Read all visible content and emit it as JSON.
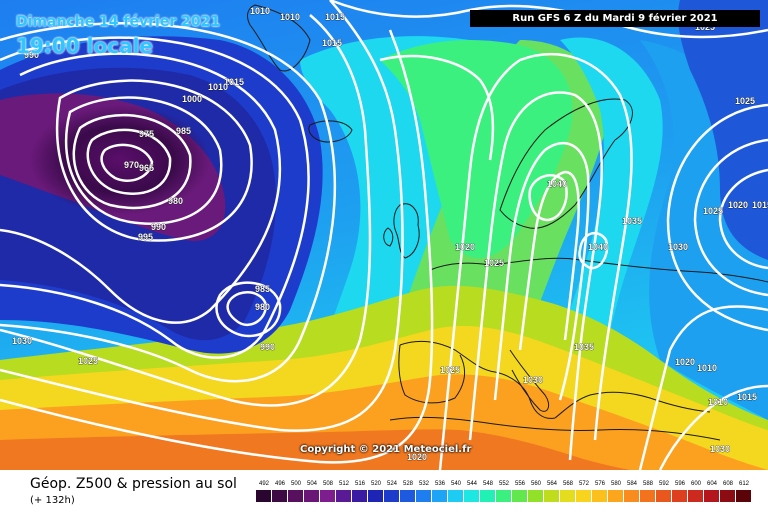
{
  "header": {
    "date_line": "Dimanche 14 février 2021",
    "time_line": "19:00 locale",
    "run_banner": "Run GFS 6 Z du Mardi 9 février 2021"
  },
  "copyright": "Copyright © 2021 Meteociel.fr",
  "footer": {
    "title": "Géop. Z500 & pression au sol",
    "subtitle": "(+ 132h)"
  },
  "legend": {
    "values": [
      "492",
      "496",
      "500",
      "504",
      "508",
      "512",
      "516",
      "520",
      "524",
      "528",
      "532",
      "536",
      "540",
      "544",
      "548",
      "552",
      "556",
      "560",
      "564",
      "568",
      "572",
      "576",
      "580",
      "584",
      "588",
      "592",
      "596",
      "600",
      "604",
      "608",
      "612"
    ],
    "colors": [
      "#2a0530",
      "#3e0a45",
      "#56105e",
      "#6a1677",
      "#7e1d8e",
      "#5a1a96",
      "#3a1ca2",
      "#1e24b4",
      "#1e3ccc",
      "#1e5ae0",
      "#1e7ef0",
      "#1ea4f4",
      "#1ecbf2",
      "#1ee6e0",
      "#22f0b4",
      "#3cf080",
      "#62e84e",
      "#92e028",
      "#c0dc1e",
      "#e4dc1e",
      "#f8d41e",
      "#fcc01e",
      "#fca61e",
      "#f88c1e",
      "#f2721e",
      "#e8581e",
      "#dc401e",
      "#cc2a1e",
      "#b4161e",
      "#8c0c14",
      "#5a040a"
    ]
  },
  "map_colors": {
    "low_core": "#3a0a4a",
    "low": "#6a1a7a",
    "deep_blue": "#1e2aa8",
    "blue": "#1e58d8",
    "light_blue": "#1ea0f0",
    "cyan": "#1ed8f0",
    "aqua_green": "#2ee8b0",
    "green": "#5ee050",
    "yellow_green": "#b8dc20",
    "yellow": "#f4d820",
    "orange": "#fca020",
    "dark_orange": "#f07820",
    "isobar": "#ffffff",
    "coast": "#1a1a1a"
  },
  "isobar_labels": [
    "990",
    "1010",
    "1010",
    "1015",
    "1015",
    "1025",
    "1015",
    "1010",
    "1000",
    "975",
    "985",
    "970",
    "965",
    "980",
    "990",
    "995",
    "985",
    "980",
    "990",
    "1040",
    "1035",
    "1040",
    "1030",
    "1025",
    "1020",
    "1015",
    "1025",
    "1020",
    "1025",
    "1030",
    "1035",
    "1030",
    "1025",
    "1020",
    "1010",
    "1010",
    "1015",
    "1030",
    "1025",
    "1020"
  ]
}
